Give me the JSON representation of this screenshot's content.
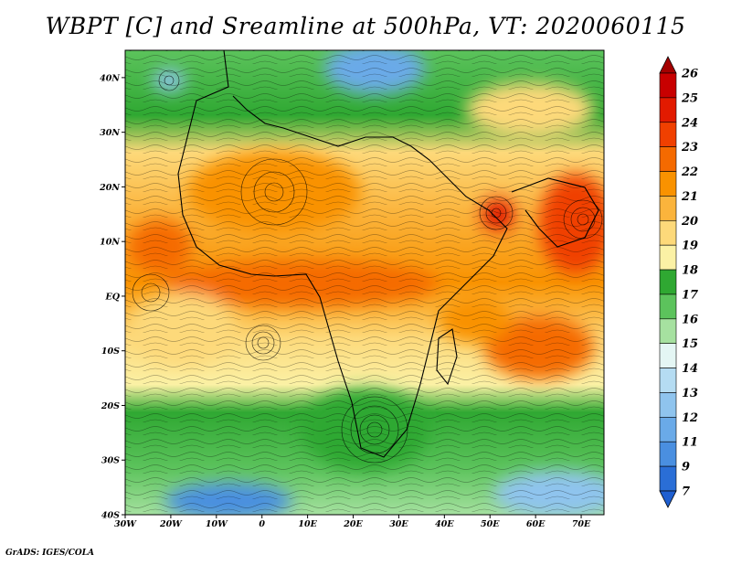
{
  "title": "WBPT [C] and Sreamline at 500hPa, VT: 2020060115",
  "credit": "GrADS: IGES/COLA",
  "map": {
    "variable": "WBPT [C]",
    "overlay": "Sreamline",
    "level": "500hPa",
    "valid_time": "2020060115",
    "lon_range": [
      -30,
      75
    ],
    "lat_range": [
      -40,
      45
    ]
  },
  "axes": {
    "y_ticks": [
      {
        "lat": 40,
        "label": "40N"
      },
      {
        "lat": 30,
        "label": "30N"
      },
      {
        "lat": 20,
        "label": "20N"
      },
      {
        "lat": 10,
        "label": "10N"
      },
      {
        "lat": 0,
        "label": "EQ"
      },
      {
        "lat": -10,
        "label": "10S"
      },
      {
        "lat": -20,
        "label": "20S"
      },
      {
        "lat": -30,
        "label": "30S"
      },
      {
        "lat": -40,
        "label": "40S"
      }
    ],
    "x_ticks": [
      {
        "lon": -30,
        "label": "30W"
      },
      {
        "lon": -20,
        "label": "20W"
      },
      {
        "lon": -10,
        "label": "10W"
      },
      {
        "lon": 0,
        "label": "0"
      },
      {
        "lon": 10,
        "label": "10E"
      },
      {
        "lon": 20,
        "label": "20E"
      },
      {
        "lon": 30,
        "label": "30E"
      },
      {
        "lon": 40,
        "label": "40E"
      },
      {
        "lon": 50,
        "label": "50E"
      },
      {
        "lon": 60,
        "label": "60E"
      },
      {
        "lon": 70,
        "label": "70E"
      }
    ]
  },
  "colorbar": {
    "orientation": "vertical",
    "placement": "right",
    "levels": [
      {
        "label": "26",
        "color": "#a40000"
      },
      {
        "label": "25",
        "color": "#c80000"
      },
      {
        "label": "24",
        "color": "#e21a00"
      },
      {
        "label": "23",
        "color": "#f04000"
      },
      {
        "label": "22",
        "color": "#f56a00"
      },
      {
        "label": "21",
        "color": "#f99200"
      },
      {
        "label": "20",
        "color": "#fbb43c"
      },
      {
        "label": "19",
        "color": "#fdd97a"
      },
      {
        "label": "18",
        "color": "#fbf1a5"
      },
      {
        "label": "17",
        "color": "#2fa832"
      },
      {
        "label": "16",
        "color": "#5cc35c"
      },
      {
        "label": "15",
        "color": "#a6e1a0"
      },
      {
        "label": "14",
        "color": "#e4f6f4"
      },
      {
        "label": "13",
        "color": "#b5dcf2"
      },
      {
        "label": "12",
        "color": "#8fc4ee"
      },
      {
        "label": "11",
        "color": "#6aaae8"
      },
      {
        "label": "9",
        "color": "#4a8fe0"
      },
      {
        "label": "7",
        "color": "#2a6ed6"
      }
    ],
    "below_color": "#1f5fd0"
  }
}
